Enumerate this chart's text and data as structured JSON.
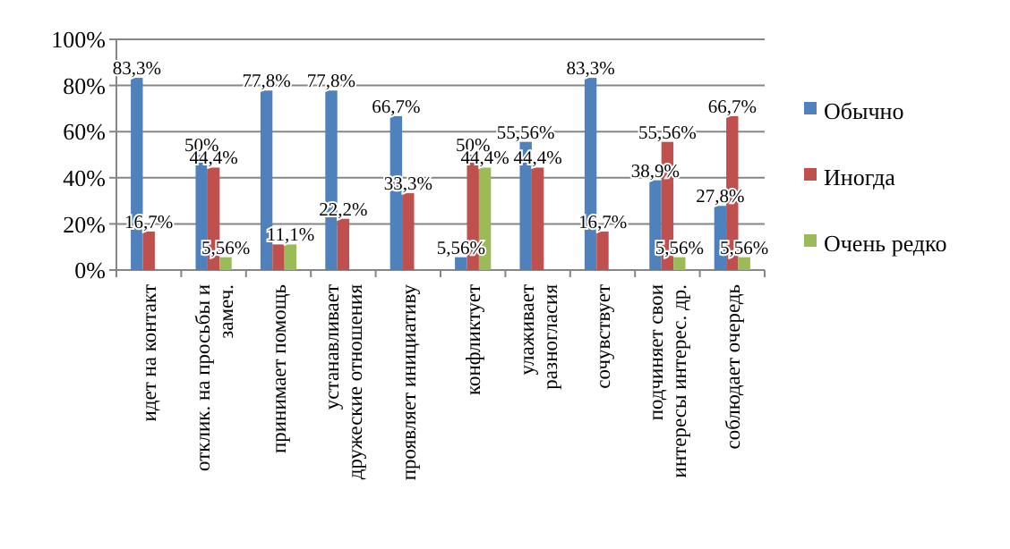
{
  "chart_data": {
    "type": "bar",
    "categories": [
      "идет на контакт",
      "отклик. на просьбы и\nзамеч.",
      "принимает помощь",
      "устанавливает\nдружеские отношения",
      "проявляет инициативу",
      "конфликтует",
      "улаживает\nразногласия",
      "сочувствует",
      "подчиняет свои\nинтересы интерес. др.",
      "соблюдает очередь"
    ],
    "series": [
      {
        "name": "Обычно",
        "color": "#4f81bd",
        "values": [
          83.3,
          50,
          77.8,
          77.8,
          66.7,
          5.56,
          55.56,
          83.3,
          38.9,
          27.8
        ],
        "value_labels": [
          "83,3%",
          "50%",
          "77,8%",
          "77,8%",
          "66,7%",
          "5,56%",
          "55,56%",
          "83,3%",
          "38,9%",
          "27,8%"
        ]
      },
      {
        "name": "Иногда",
        "color": "#c0504d",
        "values": [
          16.7,
          44.4,
          11.1,
          22.2,
          33.3,
          50,
          44.4,
          16.7,
          55.56,
          66.7
        ],
        "value_labels": [
          "16,7%",
          "44,4%",
          null,
          "22,2%",
          "33,3%",
          "50%",
          "44,4%",
          "16,7%",
          "55,56%",
          "66,7%"
        ]
      },
      {
        "name": "Очень редко",
        "color": "#9bbb59",
        "values": [
          null,
          5.56,
          11.1,
          null,
          null,
          44.4,
          null,
          null,
          5.56,
          5.56
        ],
        "value_labels": [
          null,
          "5,56%",
          "11,1%",
          null,
          null,
          "44,4%",
          null,
          null,
          "5,56%",
          "5,56%"
        ]
      }
    ],
    "ylim": [
      0,
      100
    ],
    "yticks": [
      {
        "value": 0,
        "label": "0%"
      },
      {
        "value": 20,
        "label": "20%"
      },
      {
        "value": 40,
        "label": "40%"
      },
      {
        "value": 60,
        "label": "60%"
      },
      {
        "value": 80,
        "label": "80%"
      },
      {
        "value": 100,
        "label": "100%"
      }
    ],
    "grid": "y",
    "legend": "right"
  }
}
